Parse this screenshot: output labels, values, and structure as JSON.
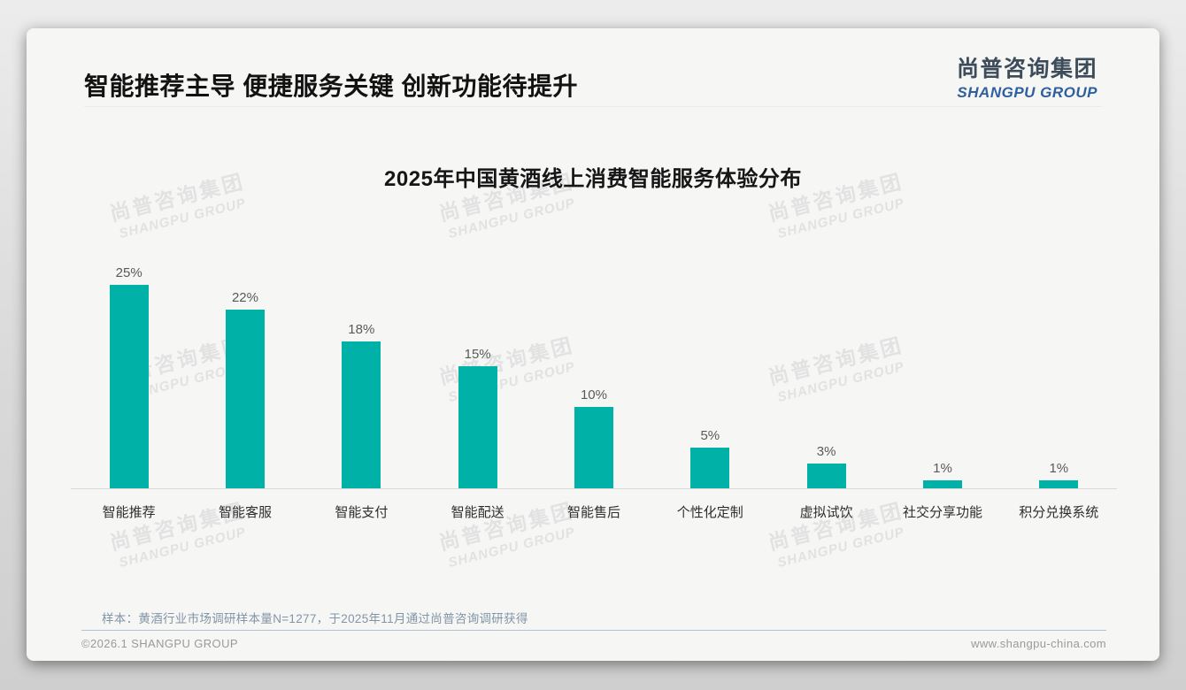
{
  "header": {
    "title": "智能推荐主导 便捷服务关键 创新功能待提升",
    "logo_cn": "尚普咨询集团",
    "logo_en": "SHANGPU GROUP"
  },
  "chart_data": {
    "type": "bar",
    "title": "2025年中国黄酒线上消费智能服务体验分布",
    "categories": [
      "智能推荐",
      "智能客服",
      "智能支付",
      "智能配送",
      "智能售后",
      "个性化定制",
      "虚拟试饮",
      "社交分享功能",
      "积分兑换系统"
    ],
    "values": [
      25,
      22,
      18,
      15,
      10,
      5,
      3,
      1,
      1
    ],
    "unit": "%",
    "xlabel": "",
    "ylabel": "",
    "ylim": [
      0,
      27
    ],
    "grid": false,
    "legend_position": "none",
    "bar_color": "#00b1a8",
    "value_label_color": "#595959"
  },
  "note": "样本：黄酒行业市场调研样本量N=1277，于2025年11月通过尚普咨询调研获得",
  "footer": {
    "left": "©2026.1 SHANGPU GROUP",
    "right": "www.shangpu-china.com"
  },
  "watermark": {
    "line1": "尚普咨询集团",
    "line2": "SHANGPU GROUP"
  }
}
